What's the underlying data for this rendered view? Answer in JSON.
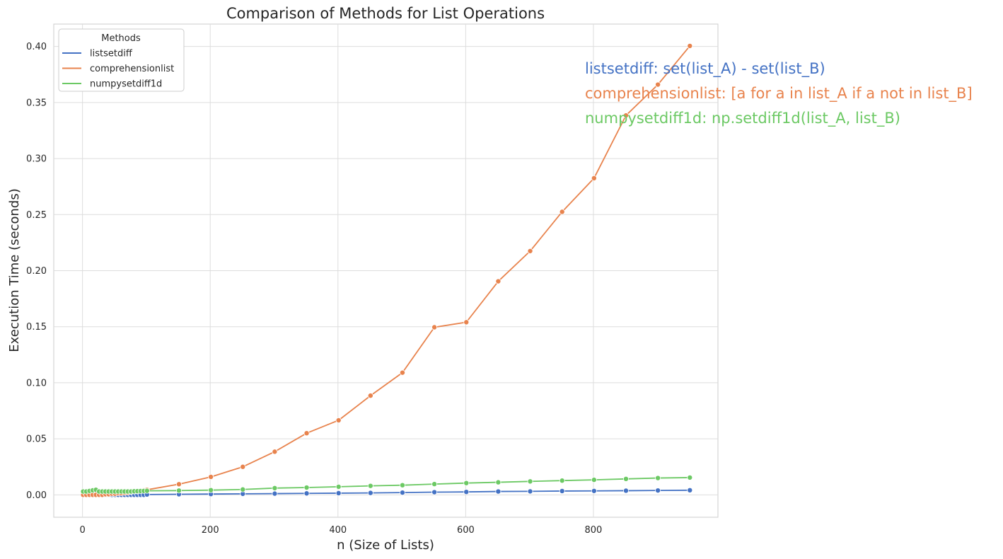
{
  "chart_data": {
    "type": "line",
    "title": "Comparison of Methods for List Operations",
    "xlabel": "n (Size of Lists)",
    "ylabel": "Execution Time (seconds)",
    "xlim": [
      -45,
      995
    ],
    "ylim": [
      -0.02,
      0.42
    ],
    "xticks": [
      0,
      200,
      400,
      600,
      800
    ],
    "yticks": [
      0.0,
      0.05,
      0.1,
      0.15,
      0.2,
      0.25,
      0.3,
      0.35,
      0.4
    ],
    "ytick_labels": [
      "0.00",
      "0.05",
      "0.10",
      "0.15",
      "0.20",
      "0.25",
      "0.30",
      "0.35",
      "0.40"
    ],
    "grid": true,
    "legend": {
      "title": "Methods",
      "placement": "top-left"
    },
    "x": [
      1,
      6,
      11,
      16,
      21,
      26,
      31,
      36,
      41,
      46,
      51,
      56,
      61,
      66,
      71,
      76,
      81,
      86,
      91,
      96,
      101,
      151,
      201,
      251,
      301,
      351,
      401,
      451,
      501,
      551,
      601,
      651,
      701,
      751,
      801,
      851,
      901,
      951
    ],
    "series": [
      {
        "name": "listsetdiff",
        "color": "#4472c4",
        "values": [
          0.0,
          0.0,
          0.0,
          0.0,
          0.0,
          0.0,
          0.0,
          0.0,
          0.0,
          0.0,
          0.0,
          0.0,
          0.0,
          0.0,
          0.0,
          0.0,
          0.0,
          0.0,
          0.0,
          0.0,
          0.0003,
          0.0005,
          0.0007,
          0.0009,
          0.0011,
          0.0013,
          0.0015,
          0.0017,
          0.002,
          0.0024,
          0.0026,
          0.003,
          0.0031,
          0.0034,
          0.0035,
          0.0037,
          0.0039,
          0.0041
        ]
      },
      {
        "name": "comprehensionlist",
        "color": "#e8834d",
        "values": [
          0.0,
          0.0,
          0.0,
          0.0,
          0.0,
          0.0,
          0.0,
          0.0005,
          0.0005,
          0.001,
          0.001,
          0.0015,
          0.0015,
          0.0018,
          0.002,
          0.0025,
          0.003,
          0.003,
          0.0035,
          0.004,
          0.0045,
          0.0095,
          0.016,
          0.025,
          0.0385,
          0.055,
          0.0665,
          0.0885,
          0.109,
          0.1495,
          0.154,
          0.1905,
          0.2175,
          0.2525,
          0.2825,
          0.3385,
          0.366,
          0.4005
        ]
      },
      {
        "name": "numpysetdiff1d",
        "color": "#6cc964",
        "values": [
          0.003,
          0.003,
          0.0035,
          0.004,
          0.0045,
          0.003,
          0.003,
          0.003,
          0.003,
          0.003,
          0.003,
          0.003,
          0.003,
          0.003,
          0.003,
          0.003,
          0.0032,
          0.0033,
          0.0034,
          0.0035,
          0.0036,
          0.0038,
          0.0042,
          0.0048,
          0.006,
          0.0065,
          0.0072,
          0.008,
          0.0086,
          0.0096,
          0.0105,
          0.0112,
          0.012,
          0.0127,
          0.0134,
          0.0142,
          0.015,
          0.0154
        ]
      }
    ],
    "annotations": [
      {
        "text": "listsetdiff: set(list_A) - set(list_B)",
        "color": "#4472c4"
      },
      {
        "text": "comprehensionlist: [a for a in list_A if a not in list_B]",
        "color": "#e8834d"
      },
      {
        "text": "numpysetdiff1d: np.setdiff1d(list_A, list_B)",
        "color": "#6cc964"
      }
    ]
  }
}
